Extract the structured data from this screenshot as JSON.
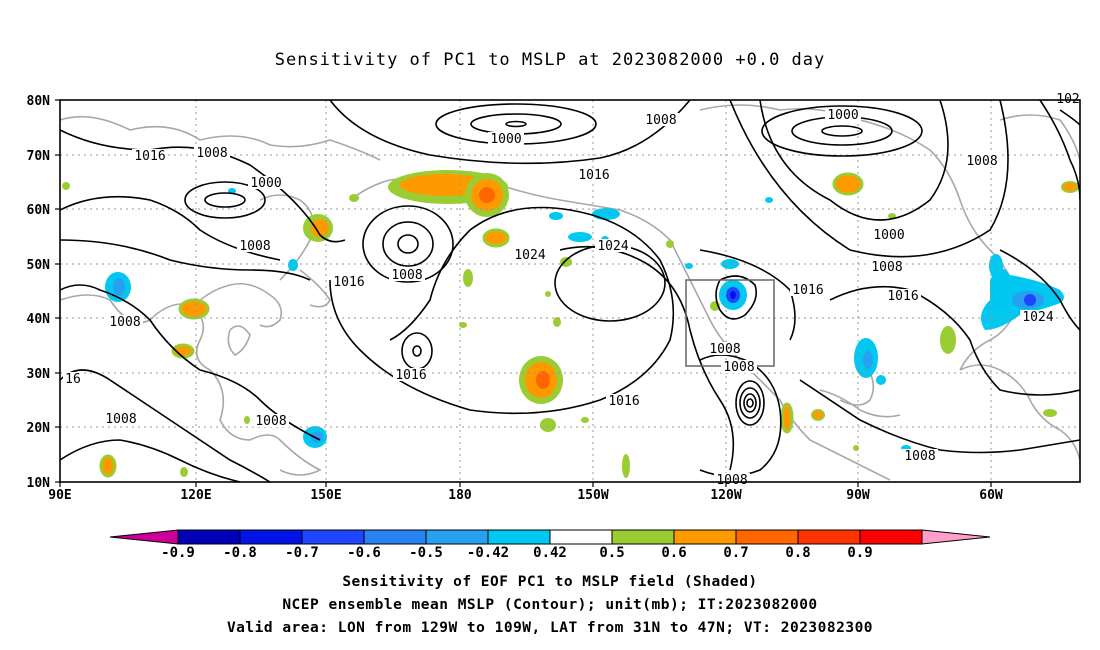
{
  "title": "Sensitivity of PC1 to MSLP at 2023082000 +0.0 day",
  "map": {
    "lon_labels": [
      "90E",
      "120E",
      "150E",
      "180",
      "150W",
      "120W",
      "90W",
      "60W"
    ],
    "lat_labels": [
      "80N",
      "70N",
      "60N",
      "50N",
      "40N",
      "30N",
      "20N",
      "10N"
    ],
    "contour_labels": [
      "1000",
      "1000",
      "1000",
      "1000",
      "1008",
      "1008",
      "1008",
      "1008",
      "1008",
      "1008",
      "1008",
      "1008",
      "1008",
      "1008",
      "1008",
      "1008",
      "1008",
      "1016",
      "1016",
      "1016",
      "1016",
      "1016",
      "1016",
      "1016",
      "1024",
      "1024",
      "1024",
      "16",
      "102"
    ],
    "valid_box": {
      "lon": [
        -129,
        -109
      ],
      "lat": [
        31,
        47
      ]
    }
  },
  "colorbar": {
    "labels": [
      "-0.9",
      "-0.8",
      "-0.7",
      "-0.6",
      "-0.5",
      "-0.42",
      "0.42",
      "0.5",
      "0.6",
      "0.7",
      "0.8",
      "0.9"
    ],
    "colors": [
      "#cc0099",
      "#0000b4",
      "#0014e6",
      "#1e46ff",
      "#2882f0",
      "#28a0f0",
      "#00c8f0",
      "#ffffff",
      "#9acd32",
      "#ff9900",
      "#ff6600",
      "#ff3300",
      "#ff0000",
      "#ff9ec8"
    ]
  },
  "captions": [
    "Sensitivity of EOF PC1 to MSLP field (Shaded)",
    "NCEP ensemble mean MSLP (Contour); unit(mb); IT:2023082000",
    "Valid area: LON from 129W to 109W, LAT from 31N to 47N; VT: 2023082300"
  ]
}
